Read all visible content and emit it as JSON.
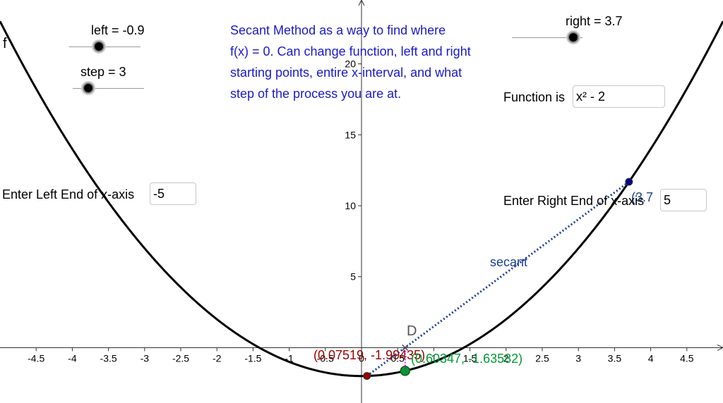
{
  "sliders": {
    "left": {
      "label": "left = -0.9",
      "value": -0.9
    },
    "step": {
      "label": "step = 3",
      "value": 3
    },
    "right": {
      "label": "right = 3.7",
      "value": 3.7
    }
  },
  "description": {
    "lines": [
      "Secant Method as a way to find where",
      "f(x) = 0.  Can change function, left and right",
      "starting points, entire x-interval, and what",
      "step of the process you are at."
    ]
  },
  "function_input": {
    "label": "Function is",
    "value": "x² - 2"
  },
  "left_end_input": {
    "label": "Enter Left End of x-axis",
    "value": "-5"
  },
  "right_end_input": {
    "label": "Enter Right End of x-axis",
    "value": "5"
  },
  "graph": {
    "function_label": "f",
    "secant_label": "secant",
    "point_d_label": "D",
    "right_point_label": "(3.7",
    "left_point_label": "(0.07519, -1.99435)",
    "root_point_label": "(0.60347, -1.63582)",
    "colors": {
      "curve": "#000000",
      "secant": "#1f3f99",
      "left_point": "#990000",
      "root_point": "#009933",
      "right_point": "#00008b",
      "intersection": "#cc00cc"
    }
  },
  "chart_data": {
    "type": "line",
    "xlim": [
      -5,
      5
    ],
    "ylim": [
      -3.9,
      24.5
    ],
    "x_ticks": [
      "-4.5",
      "-4",
      "-3.5",
      "-3",
      "-2.5",
      "-2",
      "-1.5",
      "-1",
      "-0.5",
      "0",
      "0.5",
      "1",
      "1.5",
      "2",
      "2.5",
      "3",
      "3.5",
      "4",
      "4.5"
    ],
    "y_ticks": [
      "5",
      "10",
      "15",
      "20"
    ],
    "series": [
      {
        "name": "f",
        "expression": "x^2 - 2",
        "x": [
          -5,
          5
        ]
      },
      {
        "name": "secant",
        "x": [
          0.07519,
          3.7
        ],
        "y": [
          -1.99435,
          11.69
        ]
      }
    ],
    "points": [
      {
        "label": "(0.07519, -1.99435)",
        "x": 0.07519,
        "y": -1.99435
      },
      {
        "label": "(0.60347, -1.63582)",
        "x": 0.60347,
        "y": -1.63582
      },
      {
        "label": "(3.7",
        "x": 3.7,
        "y": 11.69
      },
      {
        "label": "D",
        "x": 0.60347,
        "y": 0
      }
    ],
    "grid": false
  }
}
